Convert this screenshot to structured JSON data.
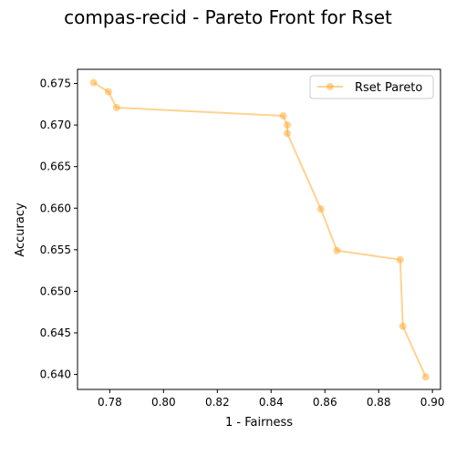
{
  "chart_data": {
    "type": "line",
    "title": "compas-recid - Pareto Front for Rset",
    "xlabel": "1 - Fairness",
    "ylabel": "Accuracy",
    "xlim": [
      0.768,
      0.903
    ],
    "ylim": [
      0.6382,
      0.6767
    ],
    "xticks": [
      0.78,
      0.8,
      0.82,
      0.84,
      0.86,
      0.88,
      0.9
    ],
    "xtick_labels": [
      "0.78",
      "0.80",
      "0.82",
      "0.84",
      "0.86",
      "0.88",
      "0.90"
    ],
    "yticks": [
      0.64,
      0.645,
      0.65,
      0.655,
      0.66,
      0.665,
      0.67,
      0.675
    ],
    "ytick_labels": [
      "0.640",
      "0.645",
      "0.650",
      "0.655",
      "0.660",
      "0.665",
      "0.670",
      "0.675"
    ],
    "grid": false,
    "legend_position": "top-right",
    "series": [
      {
        "name": "Rset Pareto",
        "color": "#ffa726",
        "marker": "circle",
        "x": [
          0.774,
          0.7795,
          0.7825,
          0.8445,
          0.846,
          0.846,
          0.8585,
          0.8645,
          0.888,
          0.889,
          0.8975
        ],
        "y": [
          0.6751,
          0.674,
          0.6721,
          0.6711,
          0.67,
          0.669,
          0.6599,
          0.6549,
          0.6538,
          0.6458,
          0.6397
        ]
      }
    ]
  }
}
